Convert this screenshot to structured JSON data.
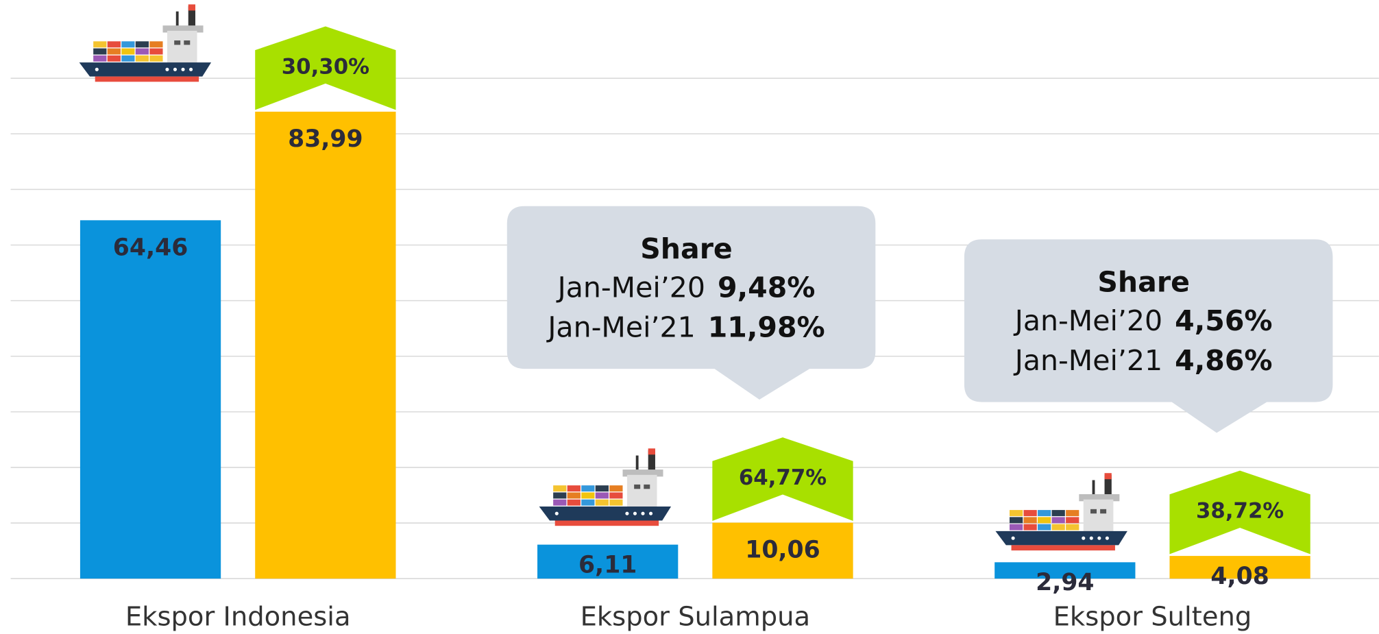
{
  "chart_data": {
    "type": "bar",
    "categories": [
      "Ekspor Indonesia",
      "Ekspor Sulampua",
      "Ekspor Sulteng"
    ],
    "series": [
      {
        "name": "Jan-Mei’20",
        "color": "#0a93dc",
        "values": [
          64.46,
          6.11,
          2.94
        ],
        "value_labels": [
          "64,46",
          "6,11",
          "2,94"
        ],
        "share_labels": [
          null,
          "9,48%",
          "4,56%"
        ]
      },
      {
        "name": "Jan-Mei’21",
        "color": "#ffc000",
        "values": [
          83.99,
          10.06,
          4.08
        ],
        "value_labels": [
          "83,99",
          "10,06",
          "4,08"
        ],
        "share_labels": [
          null,
          "11,98%",
          "4,86%"
        ]
      }
    ],
    "growth_labels": [
      "30,30%",
      "64,77%",
      "38,72%"
    ],
    "growth_color": "#a8e000",
    "callout_title": "Share",
    "ylim": [
      0,
      90
    ],
    "yticks": [
      0,
      10,
      20,
      30,
      40,
      50,
      60,
      70,
      80,
      90
    ],
    "grid": true
  }
}
